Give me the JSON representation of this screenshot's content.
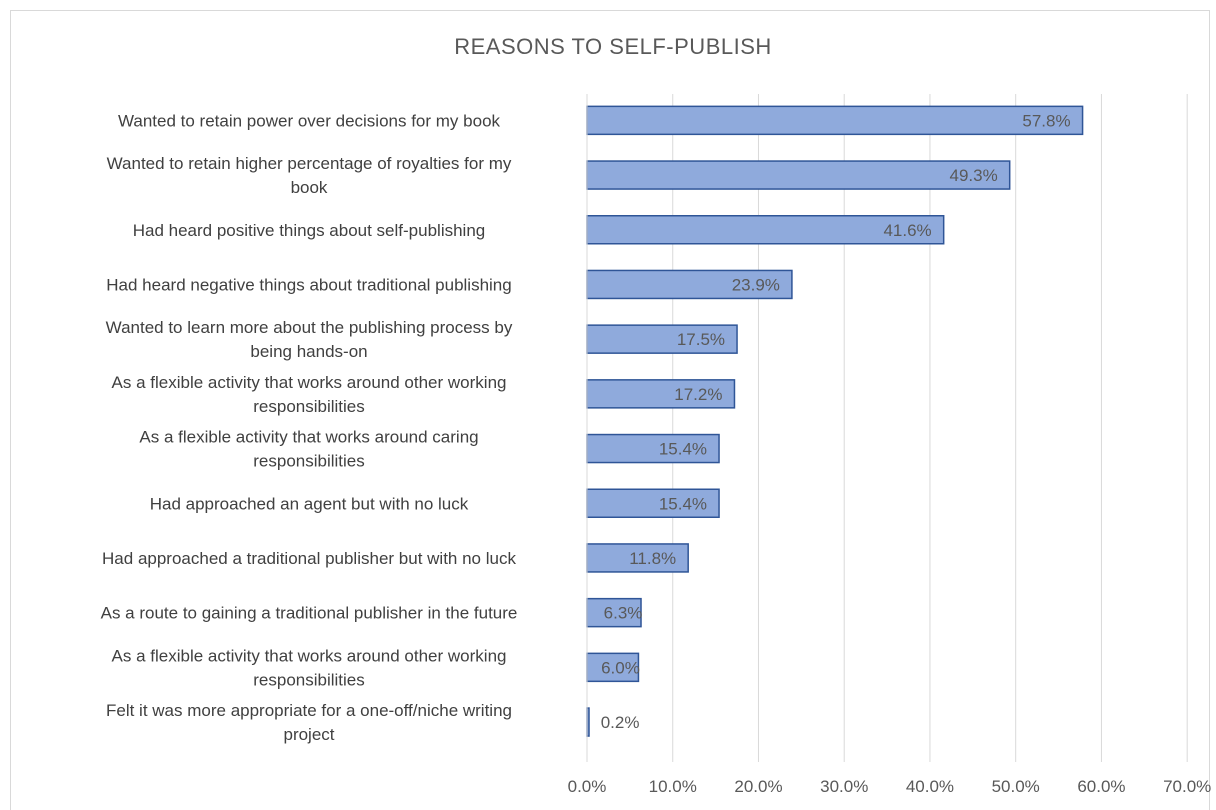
{
  "chart_data": {
    "type": "bar",
    "orientation": "horizontal",
    "title": "REASONS TO SELF-PUBLISH",
    "xlabel": "",
    "ylabel": "",
    "xlim": [
      0,
      70
    ],
    "tick_values": [
      0,
      10,
      20,
      30,
      40,
      50,
      60,
      70
    ],
    "tick_labels": [
      "0.0%",
      "10.0%",
      "20.0%",
      "30.0%",
      "40.0%",
      "50.0%",
      "60.0%",
      "70.0%"
    ],
    "grid": true,
    "legend": "none",
    "bar_color": "#8faadc",
    "bar_edge_color": "#2f5597",
    "categories": [
      [
        "Wanted to retain power over decisions for my book"
      ],
      [
        "Wanted to retain higher percentage of royalties for my",
        "book"
      ],
      [
        "Had heard positive things about self-publishing"
      ],
      [
        "Had heard negative things about traditional publishing"
      ],
      [
        "Wanted to learn more about the publishing process by",
        "being hands-on"
      ],
      [
        "As a flexible activity that works around other working",
        "responsibilities"
      ],
      [
        "As a flexible activity that works around caring",
        "responsibilities"
      ],
      [
        "Had approached an agent but with no luck"
      ],
      [
        "Had approached a traditional publisher but with no luck"
      ],
      [
        "As a route to gaining a traditional publisher in the future"
      ],
      [
        "As a flexible activity that works around other working",
        "responsibilities"
      ],
      [
        "Felt it was more appropriate for a one-off/niche writing",
        "project"
      ]
    ],
    "values": [
      57.8,
      49.3,
      41.6,
      23.9,
      17.5,
      17.2,
      15.4,
      15.4,
      11.8,
      6.3,
      6.0,
      0.2
    ],
    "data_labels": [
      "57.8%",
      "49.3%",
      "41.6%",
      "23.9%",
      "17.5%",
      "17.2%",
      "15.4%",
      "15.4%",
      "11.8%",
      "6.3%",
      "6.0%",
      "0.2%"
    ]
  }
}
